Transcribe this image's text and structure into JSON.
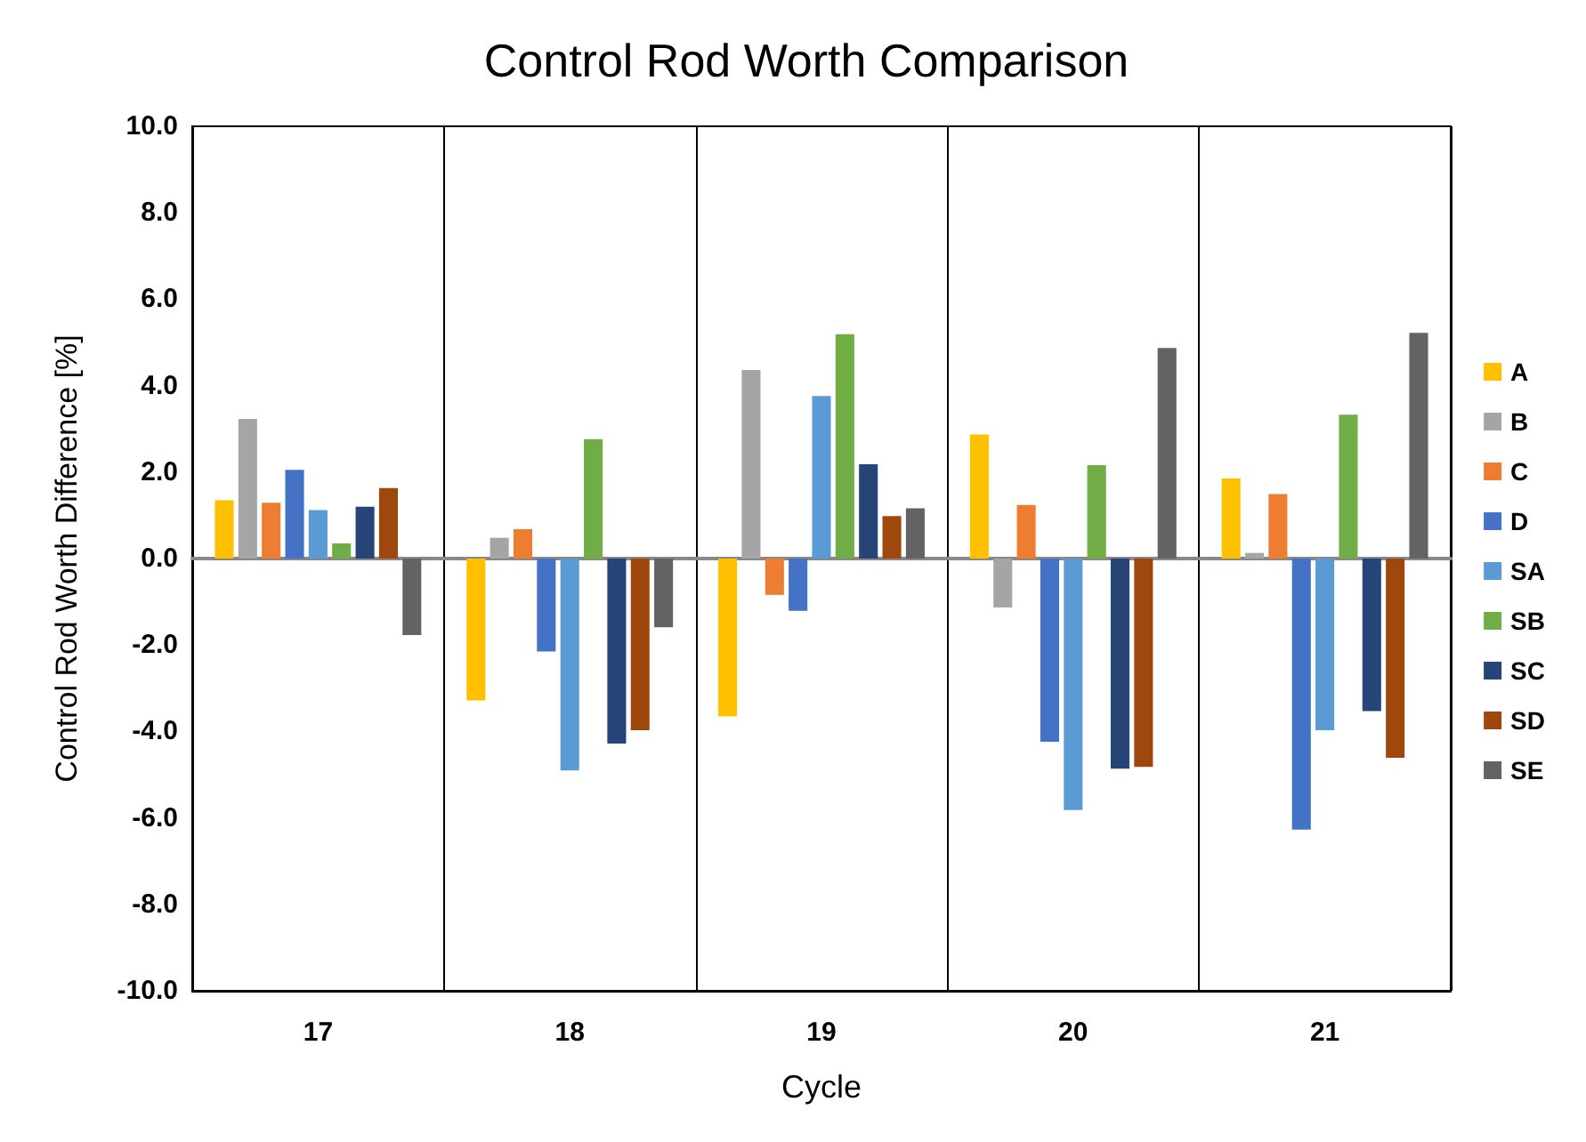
{
  "chart_data": {
    "type": "bar",
    "title": "Control Rod Worth Comparison",
    "xlabel": "Cycle",
    "ylabel": "Control Rod Worth Difference [%]",
    "categories": [
      "17",
      "18",
      "19",
      "20",
      "21"
    ],
    "series": [
      {
        "name": "A",
        "color": "#ffc000",
        "values": [
          1.35,
          -3.28,
          -3.65,
          2.87,
          1.85
        ]
      },
      {
        "name": "B",
        "color": "#a5a5a5",
        "values": [
          3.23,
          0.48,
          4.36,
          -1.13,
          0.13
        ]
      },
      {
        "name": "C",
        "color": "#ed7d31",
        "values": [
          1.29,
          0.68,
          -0.84,
          1.24,
          1.49
        ]
      },
      {
        "name": "D",
        "color": "#4472c4",
        "values": [
          2.05,
          -2.15,
          -1.21,
          -4.24,
          -6.27
        ]
      },
      {
        "name": "SA",
        "color": "#5b9bd5",
        "values": [
          1.12,
          -4.9,
          3.76,
          -5.82,
          -3.97
        ]
      },
      {
        "name": "SB",
        "color": "#70ad47",
        "values": [
          0.35,
          2.76,
          5.19,
          2.16,
          3.33
        ]
      },
      {
        "name": "SC",
        "color": "#264478",
        "values": [
          1.2,
          -4.28,
          2.18,
          -4.86,
          -3.53
        ]
      },
      {
        "name": "SD",
        "color": "#9e480e",
        "values": [
          1.63,
          -3.97,
          0.98,
          -4.82,
          -4.61
        ]
      },
      {
        "name": "SE",
        "color": "#636363",
        "values": [
          -1.77,
          -1.59,
          1.16,
          4.87,
          5.22
        ]
      }
    ],
    "ylim": [
      -10,
      10
    ],
    "yticks": [
      {
        "value": -10,
        "label": "-10.0"
      },
      {
        "value": -8,
        "label": "-8.0"
      },
      {
        "value": -6,
        "label": "-6.0"
      },
      {
        "value": -4,
        "label": "-4.0"
      },
      {
        "value": -2,
        "label": "-2.0"
      },
      {
        "value": 0,
        "label": "0.0"
      },
      {
        "value": 2,
        "label": "2.0"
      },
      {
        "value": 4,
        "label": "4.0"
      },
      {
        "value": 6,
        "label": "6.0"
      },
      {
        "value": 8,
        "label": "8.0"
      },
      {
        "value": 10,
        "label": "10.0"
      }
    ],
    "grid": "x",
    "legend": "right"
  }
}
